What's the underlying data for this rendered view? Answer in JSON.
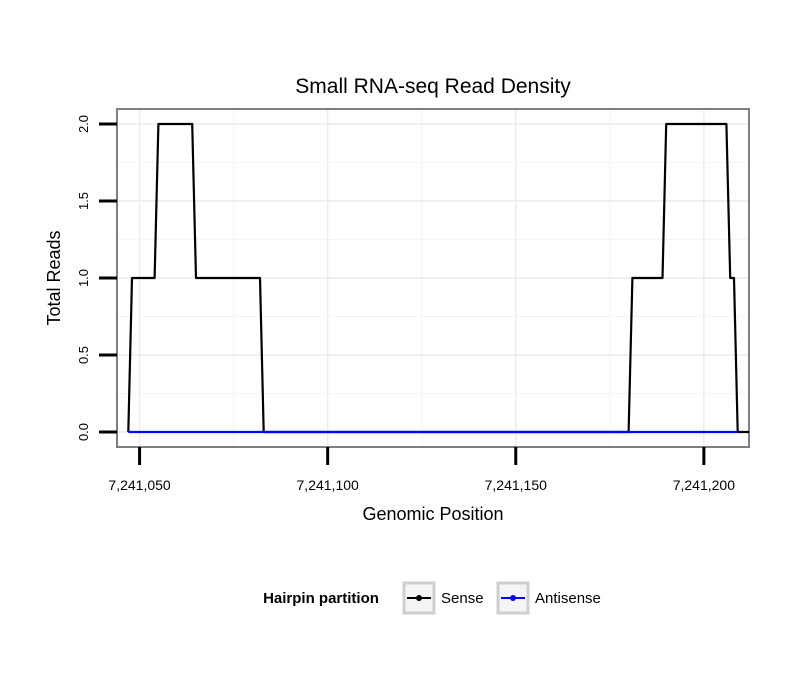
{
  "chart_data": {
    "type": "line",
    "title": "Small RNA-seq Read Density",
    "xlabel": "Genomic Position",
    "ylabel": "Total Reads",
    "xlim": [
      7241044,
      7241212
    ],
    "ylim": [
      0,
      2.1
    ],
    "x_ticks": [
      7241050,
      7241100,
      7241150,
      7241200
    ],
    "x_tick_labels": [
      "7,241,050",
      "7,241,100",
      "7,241,150",
      "7,241,200"
    ],
    "y_ticks": [
      0,
      0.5,
      1,
      1.5,
      2
    ],
    "y_tick_labels": [
      "0.0",
      "0.5",
      "1.0",
      "1.5",
      "2.0"
    ],
    "grid": true,
    "legend": {
      "title": "Hairpin partition",
      "placement": "bottom",
      "entries": [
        "Sense",
        "Antisense"
      ]
    },
    "series": [
      {
        "name": "Sense",
        "color": "#000000",
        "x": [
          7241047,
          7241048,
          7241054,
          7241055,
          7241064,
          7241065,
          7241082,
          7241083,
          7241180,
          7241181,
          7241189,
          7241190,
          7241206,
          7241207,
          7241208,
          7241209,
          7241212
        ],
        "y": [
          0,
          1,
          1,
          2,
          2,
          1,
          1,
          0,
          0,
          1,
          1,
          2,
          2,
          1,
          1,
          0,
          0
        ]
      },
      {
        "name": "Antisense",
        "color": "#0000ff",
        "x": [
          7241047,
          7241083,
          7241180,
          7241209
        ],
        "y": [
          0,
          0,
          0,
          0
        ]
      }
    ]
  }
}
